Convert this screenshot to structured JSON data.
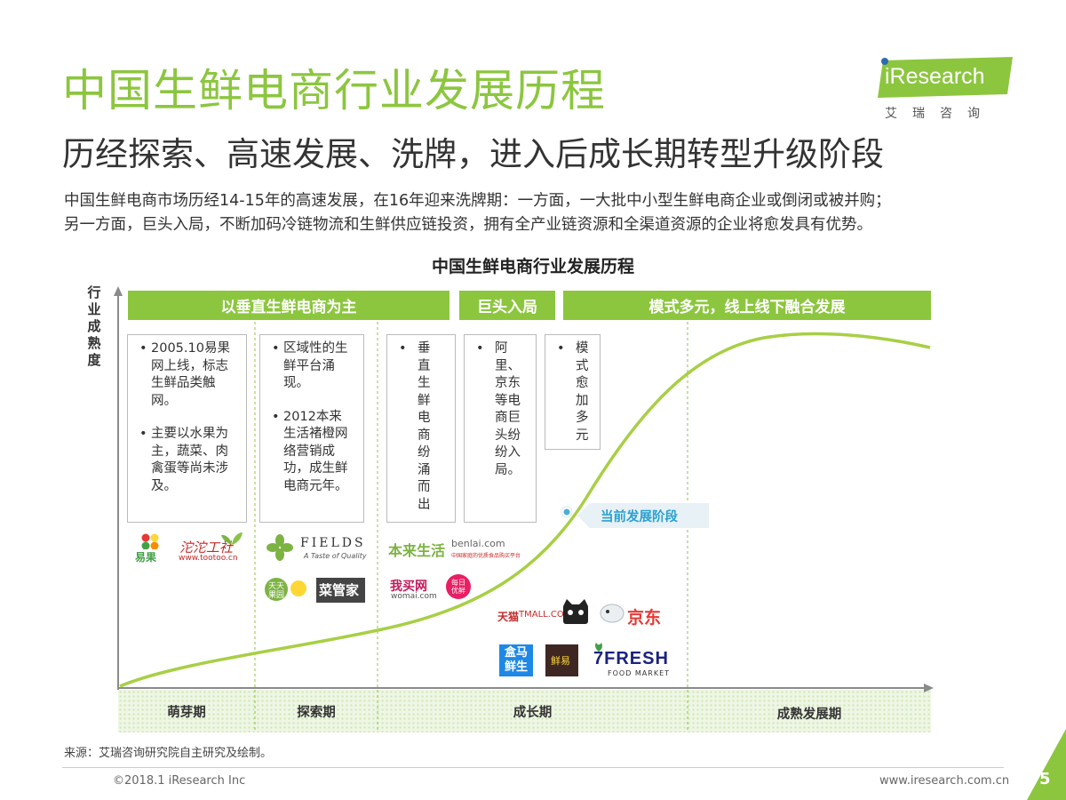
{
  "title": "中国生鲜电商行业发展历程",
  "subtitle": "历经探索、高速发展、洗牌，进入后成长期转型升级阶段",
  "description": [
    "中国生鲜电商市场历经14-15年的高速发展，在16年迎来洗牌期：一方面，一大批中小型生鲜电商企业或倒闭或被并购；",
    "另一方面，巨头入局，不断加码冷链物流和生鲜供应链投资，拥有全产业链资源和全渠道资源的企业将愈发具有优势。"
  ],
  "brand": {
    "name": "iResearch",
    "name_cn": "艾瑞咨询",
    "accent": "#8cc63f"
  },
  "chart": {
    "title": "中国生鲜电商行业发展历程",
    "y_axis_label": "行业成熟度",
    "banners": [
      "以垂直生鲜电商为主",
      "巨头入局",
      "模式多元，线上线下融合发展"
    ],
    "boxes": [
      [
        "2005.10易果网上线，标志生鲜品类触网。",
        "主要以水果为主，蔬菜、肉禽蛋等尚未涉及。"
      ],
      [
        "区域性的生鲜平台涌现。",
        "2012本来生活褚橙网络营销成功，成生鲜电商元年。"
      ],
      [
        "垂直生鲜电商纷涌而出"
      ],
      [
        "阿里、京东等电商巨头纷纷入局。"
      ],
      [
        "模式愈加多元"
      ]
    ],
    "current_stage_label": "当前发展阶段",
    "phases": [
      "萌芽期",
      "探索期",
      "成长期",
      "成熟发展期"
    ],
    "company_logos": [
      "易果",
      "沱沱工社",
      "www.tootoo.cn",
      "FIELDS",
      "A Taste of Quality",
      "天天果园",
      "菜管家",
      "本来生活",
      "benlai.com",
      "中国家庭的优质食品购买平台",
      "我买网",
      "womai.com",
      "每日优鲜",
      "天猫",
      "TMALL.COM",
      "京东",
      "盒马鲜生",
      "鲜易",
      "7FRESH",
      "FOOD MARKET"
    ]
  },
  "source": "来源：艾瑞咨询研究院自主研究及绘制。",
  "copyright": "©2018.1 iResearch Inc",
  "website": "www.iresearch.com.cn",
  "page_number": "5"
}
